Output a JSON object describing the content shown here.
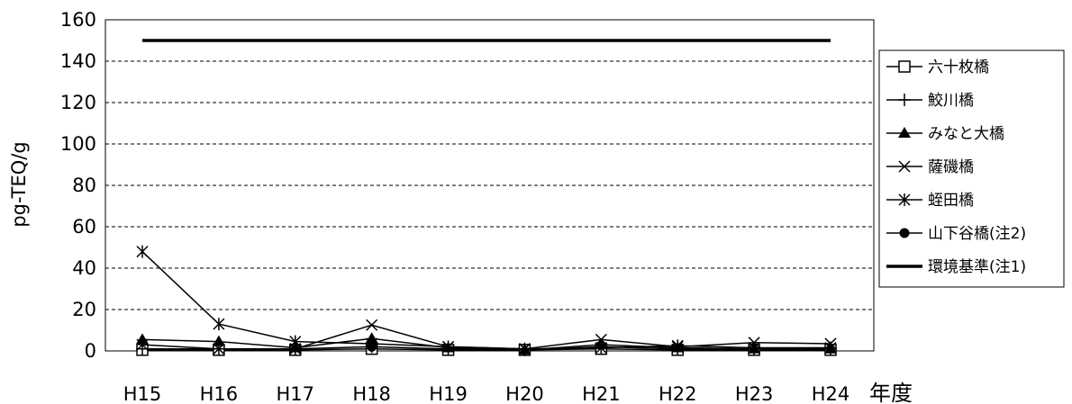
{
  "chart_data": {
    "type": "line",
    "title": "",
    "ylabel": "pg-TEQ/g",
    "xlabel": "年度",
    "categories": [
      "H15",
      "H16",
      "H17",
      "H18",
      "H19",
      "H20",
      "H21",
      "H22",
      "H23",
      "H24"
    ],
    "ylim": [
      0,
      160
    ],
    "yticks": [
      0,
      20,
      40,
      60,
      80,
      100,
      120,
      140,
      160
    ],
    "grid": "horizontal-dashed",
    "legend_position": "right",
    "series": [
      {
        "name": "六十枚橋",
        "marker": "open-square",
        "values": [
          0.5,
          0.5,
          0.5,
          1,
          0.5,
          0.5,
          1,
          0.5,
          0.5,
          0.5
        ]
      },
      {
        "name": "鮫川橋",
        "marker": "plus",
        "values": [
          1,
          1,
          1,
          2,
          1,
          0.5,
          2,
          1,
          1,
          1
        ]
      },
      {
        "name": "みなと大橋",
        "marker": "filled-triangle",
        "values": [
          5.5,
          4.5,
          1.5,
          6,
          1.5,
          0.5,
          3,
          1.5,
          1,
          1
        ]
      },
      {
        "name": "薩磯橋",
        "marker": "x",
        "values": [
          3,
          1,
          1,
          12.5,
          2,
          1,
          5.5,
          2,
          4,
          3.5
        ]
      },
      {
        "name": "蛭田橋",
        "marker": "asterisk",
        "values": [
          48,
          13,
          4.5,
          3.5,
          2,
          1,
          1.5,
          2.5,
          1.5,
          1.5
        ]
      },
      {
        "name": "山下谷橋(注2)",
        "marker": "filled-circle",
        "values": [
          null,
          null,
          null,
          2,
          null,
          null,
          null,
          null,
          null,
          null
        ]
      },
      {
        "name": "環境基準(注1)",
        "marker": "none",
        "thick": true,
        "values": [
          150,
          150,
          150,
          150,
          150,
          150,
          150,
          150,
          150,
          150
        ]
      }
    ]
  }
}
